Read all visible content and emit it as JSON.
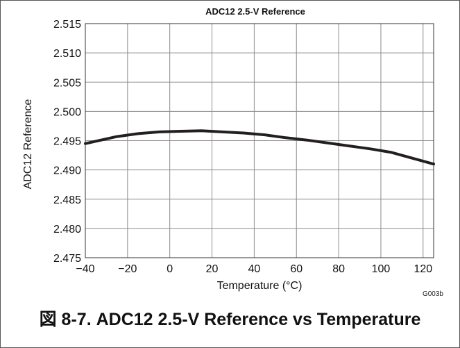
{
  "chart_data": {
    "type": "line",
    "title": "ADC12  2.5-V Reference",
    "xlabel": "Temperature (°C)",
    "ylabel": "ADC12 Reference",
    "xlim": [
      -40,
      125
    ],
    "ylim": [
      2.475,
      2.515
    ],
    "x_ticks": [
      -40,
      -20,
      0,
      20,
      40,
      60,
      80,
      100,
      120
    ],
    "x_tick_labels": [
      "−40",
      "−20",
      "0",
      "20",
      "40",
      "60",
      "80",
      "100",
      "120"
    ],
    "y_ticks": [
      2.475,
      2.48,
      2.485,
      2.49,
      2.495,
      2.5,
      2.505,
      2.51,
      2.515
    ],
    "y_tick_labels": [
      "2.475",
      "2.480",
      "2.485",
      "2.490",
      "2.495",
      "2.500",
      "2.505",
      "2.510",
      "2.515"
    ],
    "grid": true,
    "series": [
      {
        "x": [
          -40,
          -25,
          -15,
          -5,
          5,
          15,
          25,
          35,
          45,
          55,
          65,
          75,
          85,
          95,
          105,
          115,
          125
        ],
        "y": [
          2.4945,
          2.4957,
          2.4962,
          2.4965,
          2.4966,
          2.4967,
          2.4965,
          2.4963,
          2.496,
          2.4955,
          2.4951,
          2.4946,
          2.4941,
          2.4936,
          2.493,
          2.492,
          2.491
        ],
        "color": "#231f20"
      }
    ]
  },
  "figure_code": "G003b",
  "caption": "図 8-7. ADC12 2.5-V Reference vs Temperature"
}
